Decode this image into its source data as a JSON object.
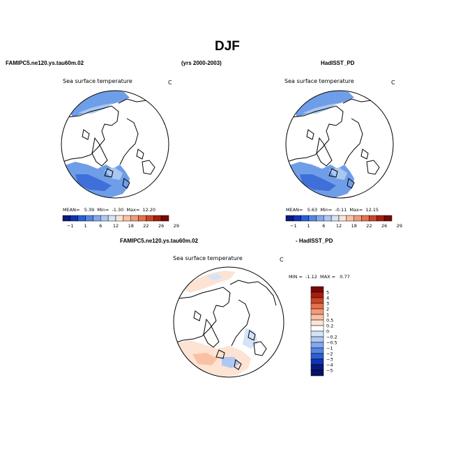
{
  "title": "DJF",
  "header": {
    "left": "FAMIPC5.ne120.ys.tau60m.02",
    "center": "(yrs 2000-2003)",
    "right": "HadISST_PD"
  },
  "diff_header": {
    "left": "FAMIPC5.ne120.ys.tau60m.02",
    "right": "- HadISST_PD"
  },
  "colors": {
    "land_outline": "#000000",
    "ocean_blue_light": "#a9c8f0",
    "ocean_blue_mid": "#6f9ee8",
    "ocean_blue_dark": "#3f6fd8"
  },
  "chart_data": [
    {
      "type": "heatmap",
      "projection": "north-polar stereographic",
      "variable": "Sea surface temperature",
      "units": "C",
      "stats": {
        "mean_label": "MEAN=",
        "mean": "5.39",
        "min_label": "Min=",
        "min": "-1.30",
        "max_label": "Max=",
        "max": "12.20"
      },
      "colorbar": {
        "orientation": "horizontal",
        "tick_labels": [
          "-1",
          "1",
          "6",
          "12",
          "18",
          "22",
          "26",
          "29"
        ],
        "colors": [
          "#081a7c",
          "#1133b8",
          "#2c5fd6",
          "#5585e4",
          "#84a7ed",
          "#aec8f3",
          "#d4e3f8",
          "#fde3d4",
          "#f9c1a3",
          "#f29b76",
          "#e5714d",
          "#cc4526",
          "#a81d10",
          "#7a0806"
        ]
      }
    },
    {
      "type": "heatmap",
      "projection": "north-polar stereographic",
      "variable": "Sea surface temperature",
      "units": "C",
      "stats": {
        "mean_label": "MEAN=",
        "mean": "5.63",
        "min_label": "Min=",
        "min": "-0.11",
        "max_label": "Max=",
        "max": "12.15"
      },
      "colorbar": {
        "orientation": "horizontal",
        "tick_labels": [
          "-1",
          "1",
          "6",
          "12",
          "18",
          "22",
          "26",
          "29"
        ],
        "colors": [
          "#081a7c",
          "#1133b8",
          "#2c5fd6",
          "#5585e4",
          "#84a7ed",
          "#aec8f3",
          "#d4e3f8",
          "#fde3d4",
          "#f9c1a3",
          "#f29b76",
          "#e5714d",
          "#cc4526",
          "#a81d10",
          "#7a0806"
        ]
      }
    },
    {
      "type": "heatmap",
      "projection": "north-polar stereographic",
      "variable": "Sea surface temperature",
      "units": "C",
      "stats": {
        "min_label": "MIN =",
        "min": "-1.12",
        "max_label": "MAX =",
        "max": "0.77"
      },
      "colorbar": {
        "orientation": "vertical",
        "tick_labels": [
          "5",
          "4",
          "3",
          "2",
          "1",
          "0.5",
          "0.2",
          "0",
          "-0.2",
          "-0.5",
          "-1",
          "-2",
          "-3",
          "-4",
          "-5"
        ],
        "colors": [
          "#7a0806",
          "#a81d10",
          "#cc4526",
          "#e5714d",
          "#f29b76",
          "#f9c1a3",
          "#fde3d4",
          "#ffffff",
          "#d4e3f8",
          "#aec8f3",
          "#84a7ed",
          "#5585e4",
          "#2c5fd6",
          "#1133b8",
          "#081a7c",
          "#061265"
        ]
      }
    }
  ]
}
